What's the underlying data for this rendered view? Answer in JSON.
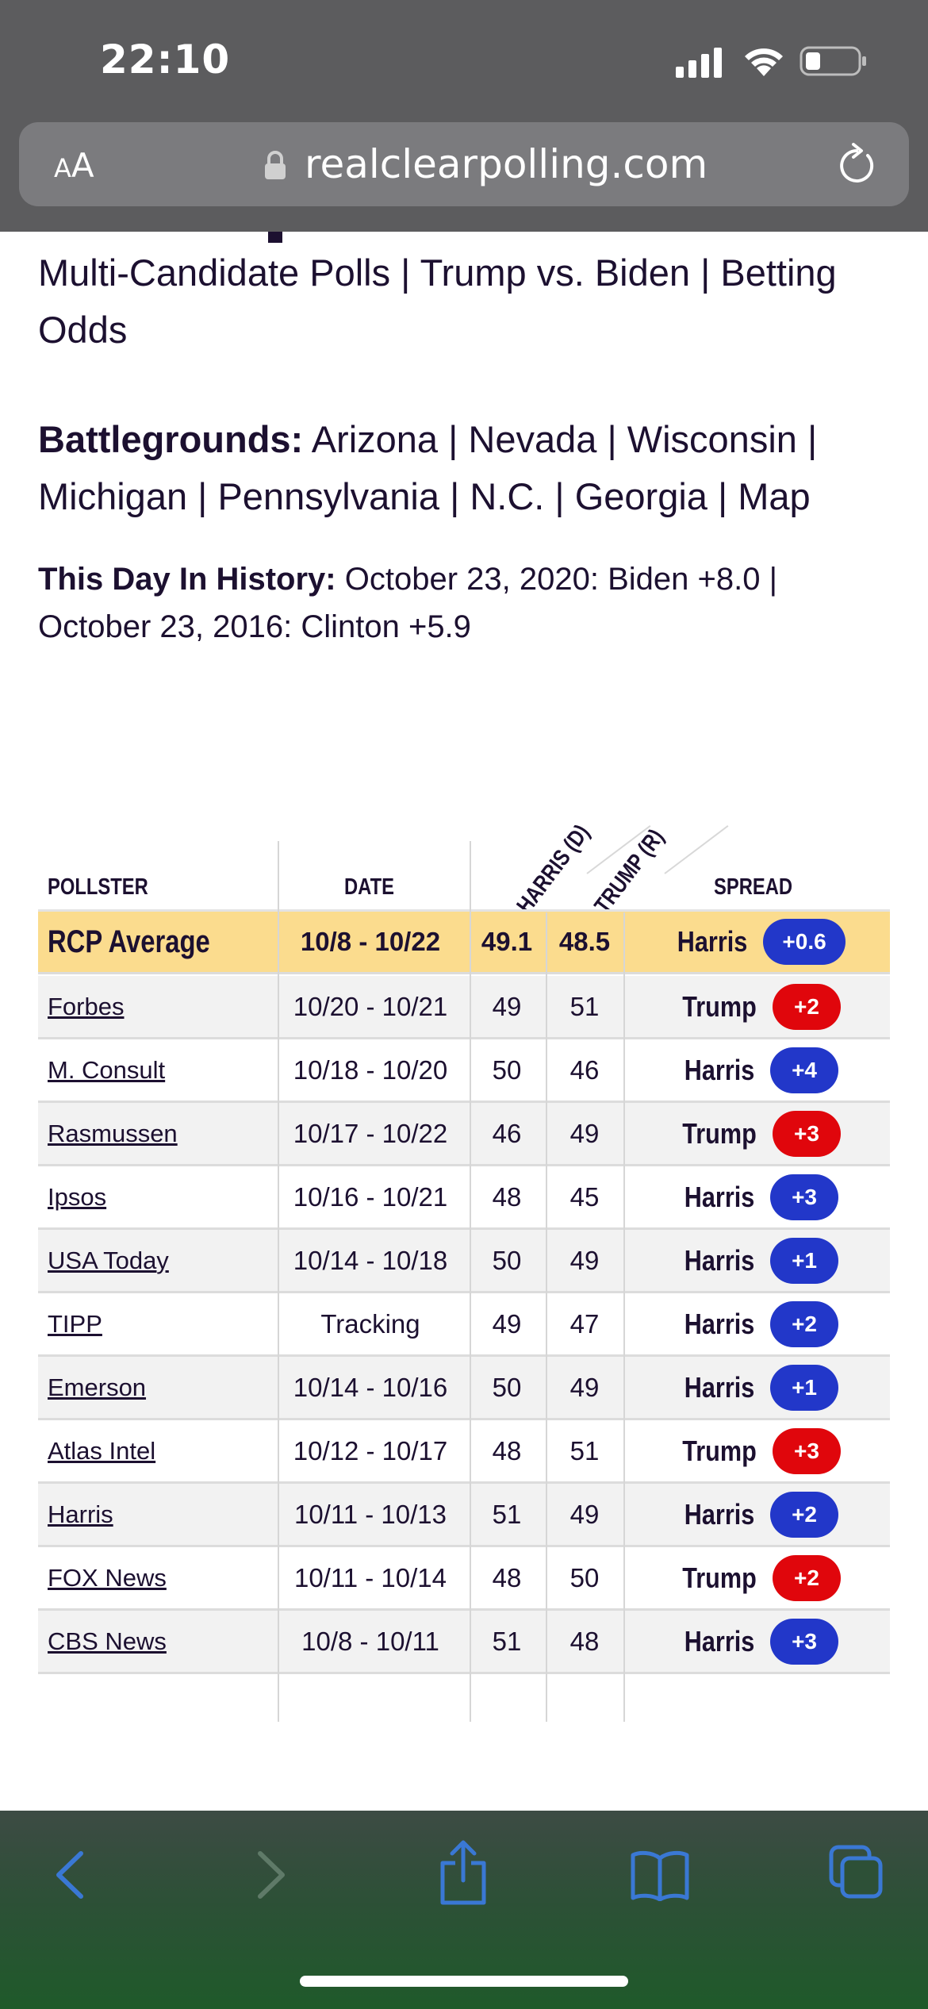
{
  "status_bar": {
    "time": "22:10"
  },
  "browser": {
    "aa_small": "A",
    "aa_big": "A",
    "domain": "realclearpolling.com",
    "colors": {
      "chrome": "#5c5c5e",
      "url_bar": "#7b7b7e",
      "toolbar_icons": "#3a78d4"
    }
  },
  "links": {
    "nav": [
      "Multi-Candidate Polls",
      "Trump vs. Biden",
      "Betting Odds"
    ],
    "battlegrounds_label": "Battlegrounds:",
    "battlegrounds": [
      "Arizona",
      "Nevada",
      "Wisconsin",
      "Michigan",
      "Pennsylvania",
      "N.C.",
      "Georgia",
      "Map"
    ],
    "history_label": "This Day In History:",
    "history": [
      "October 23, 2020: Biden +8.0",
      "October 23, 2016: Clinton +5.9"
    ],
    "separator": "|"
  },
  "table": {
    "headers": {
      "pollster": "POLLSTER",
      "date": "DATE",
      "harris": "HARRIS (D)",
      "trump": "TRUMP (R)",
      "spread": "SPREAD"
    },
    "average": {
      "pollster": "RCP Average",
      "date": "10/8 - 10/22",
      "harris": "49.1",
      "trump": "48.5",
      "leader": "Harris",
      "margin": "+0.6"
    },
    "rows": [
      {
        "pollster": "Forbes",
        "date": "10/20 - 10/21",
        "harris": "49",
        "trump": "51",
        "leader": "Trump",
        "margin": "+2"
      },
      {
        "pollster": "M. Consult",
        "date": "10/18 - 10/20",
        "harris": "50",
        "trump": "46",
        "leader": "Harris",
        "margin": "+4"
      },
      {
        "pollster": "Rasmussen",
        "date": "10/17 - 10/22",
        "harris": "46",
        "trump": "49",
        "leader": "Trump",
        "margin": "+3"
      },
      {
        "pollster": "Ipsos",
        "date": "10/16 - 10/21",
        "harris": "48",
        "trump": "45",
        "leader": "Harris",
        "margin": "+3"
      },
      {
        "pollster": "USA Today",
        "date": "10/14 - 10/18",
        "harris": "50",
        "trump": "49",
        "leader": "Harris",
        "margin": "+1"
      },
      {
        "pollster": "TIPP",
        "date": "Tracking",
        "harris": "49",
        "trump": "47",
        "leader": "Harris",
        "margin": "+2"
      },
      {
        "pollster": "Emerson",
        "date": "10/14 - 10/16",
        "harris": "50",
        "trump": "49",
        "leader": "Harris",
        "margin": "+1"
      },
      {
        "pollster": "Atlas Intel",
        "date": "10/12 - 10/17",
        "harris": "48",
        "trump": "51",
        "leader": "Trump",
        "margin": "+3"
      },
      {
        "pollster": "Harris",
        "date": "10/11 - 10/13",
        "harris": "51",
        "trump": "49",
        "leader": "Harris",
        "margin": "+2"
      },
      {
        "pollster": "FOX News",
        "date": "10/11 - 10/14",
        "harris": "48",
        "trump": "50",
        "leader": "Trump",
        "margin": "+2"
      },
      {
        "pollster": "CBS News",
        "date": "10/8 - 10/11",
        "harris": "51",
        "trump": "48",
        "leader": "Harris",
        "margin": "+3"
      }
    ],
    "colors": {
      "harris": "#2237c9",
      "trump": "#e0060c",
      "average_row": "#fbdc8e"
    }
  },
  "toolbar": {
    "icons": [
      "back-icon",
      "forward-icon",
      "share-icon",
      "bookmarks-icon",
      "tabs-icon"
    ]
  }
}
